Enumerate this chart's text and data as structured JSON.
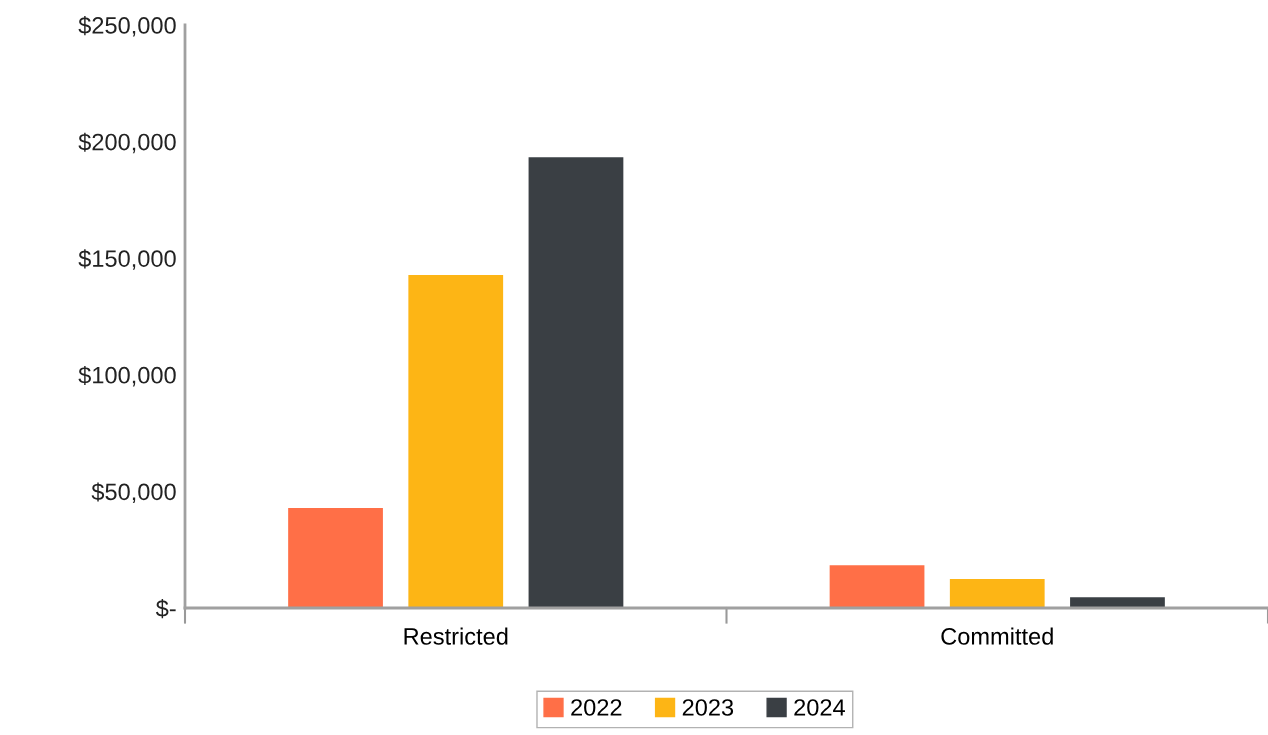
{
  "chart_data": {
    "type": "bar",
    "categories": [
      "Restricted",
      "Committed"
    ],
    "series": [
      {
        "name": "2022",
        "color": "#ff6f47",
        "values": [
          42900,
          18300
        ]
      },
      {
        "name": "2023",
        "color": "#fdb515",
        "values": [
          142800,
          12400
        ]
      },
      {
        "name": "2024",
        "color": "#3a3f44",
        "values": [
          193300,
          4600
        ]
      }
    ],
    "ylim": [
      0,
      250000
    ],
    "yticks": [
      {
        "value": 0,
        "label": "$-"
      },
      {
        "value": 50000,
        "label": "$50,000"
      },
      {
        "value": 100000,
        "label": "$100,000"
      },
      {
        "value": 150000,
        "label": "$150,000"
      },
      {
        "value": 200000,
        "label": "$200,000"
      },
      {
        "value": 250000,
        "label": "$250,000"
      }
    ],
    "grid": false,
    "legend": "bottom"
  }
}
